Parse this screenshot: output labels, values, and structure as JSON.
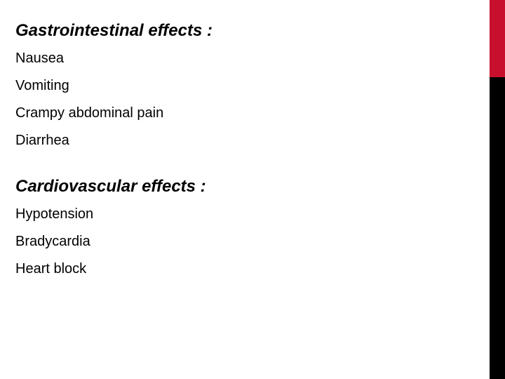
{
  "accent": {
    "red": "#c8102e",
    "black": "#000000"
  },
  "text_color": "#000000",
  "background_color": "#ffffff",
  "heading_fontsize": 24,
  "item_fontsize": 20,
  "sections": {
    "gi": {
      "heading": "Gastrointestinal effects :",
      "items": [
        "Nausea",
        "Vomiting",
        "Crampy abdominal pain",
        "Diarrhea"
      ]
    },
    "cv": {
      "heading": "Cardiovascular effects :",
      "items": [
        "Hypotension",
        "Bradycardia",
        "Heart  block"
      ]
    }
  }
}
